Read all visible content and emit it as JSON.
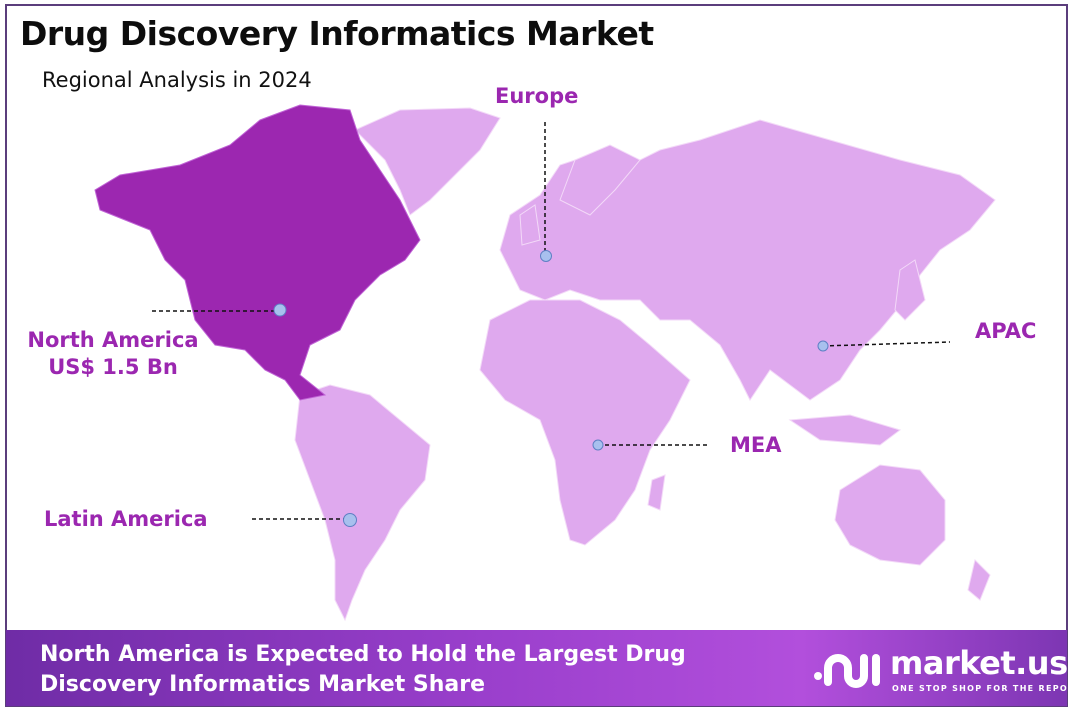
{
  "header": {
    "title": "Drug Discovery Informatics Market",
    "subtitle": "Regional Analysis in 2024"
  },
  "colors": {
    "highlight_region": "#9c27b0",
    "other_regions": "#dfa9ee",
    "label": "#9b27b0",
    "border": "#5b3d7c"
  },
  "map": {
    "highlighted_region": "North America",
    "regions": [
      {
        "name": "North America",
        "value": "US$ 1.5 Bn"
      },
      {
        "name": "Europe"
      },
      {
        "name": "APAC"
      },
      {
        "name": "MEA"
      },
      {
        "name": "Latin America"
      }
    ]
  },
  "footer": {
    "headline_line1": "North America is Expected to Hold the Largest Drug",
    "headline_line2": "Discovery Informatics Market Share",
    "logo_name": "market.us",
    "logo_tagline": "ONE STOP SHOP FOR THE REPORTS"
  }
}
